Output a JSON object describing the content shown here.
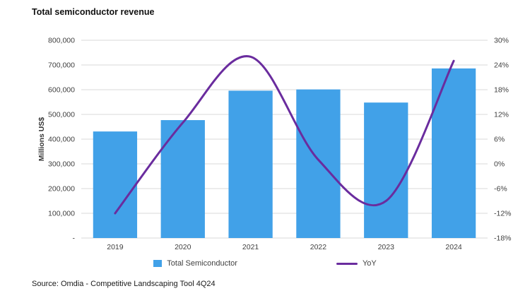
{
  "title": "Total semiconductor revenue",
  "source": "Source: Omdia - Competitive Landscaping Tool 4Q24",
  "chart_data": {
    "type": "bar",
    "subtype": "bar-with-secondary-line",
    "title": "Total semiconductor revenue",
    "categories": [
      "2019",
      "2020",
      "2021",
      "2022",
      "2023",
      "2024"
    ],
    "series": [
      {
        "name": "Total Semiconductor",
        "type": "bar",
        "axis": "left",
        "color": "#41A1E8",
        "values": [
          431000,
          477000,
          596000,
          601000,
          548000,
          686000
        ]
      },
      {
        "name": "YoY",
        "type": "line",
        "axis": "right",
        "color": "#6A2C9E",
        "values": [
          -12,
          10,
          26,
          1,
          -9,
          25
        ]
      }
    ],
    "left_axis": {
      "label": "Millions US$",
      "min": 0,
      "max": 800000,
      "step": 100000,
      "zero_label": "-"
    },
    "right_axis": {
      "min": -18,
      "max": 30,
      "step": 6,
      "suffix": "%"
    },
    "grid": true,
    "gridline_color": "#D9D9D9",
    "legend_position": "bottom"
  }
}
